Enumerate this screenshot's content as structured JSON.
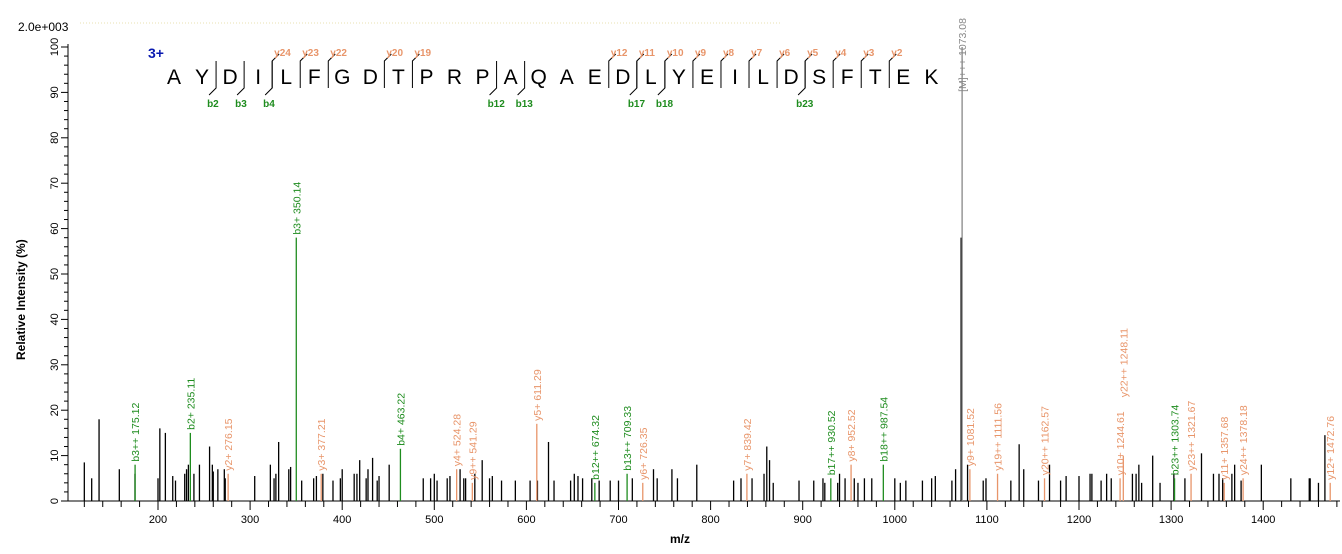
{
  "chart_data": {
    "type": "bar",
    "title": "",
    "scale_label": "2.0e+003",
    "xlabel": "m/z",
    "ylabel": "Relative  Intensity (%)",
    "xlim": [
      102,
      1485
    ],
    "ylim": [
      0,
      100
    ],
    "x_ticks": [
      200,
      300,
      400,
      500,
      600,
      700,
      800,
      900,
      1000,
      1100,
      1200,
      1300,
      1400
    ],
    "y_ticks": [
      0,
      10,
      20,
      30,
      40,
      50,
      60,
      70,
      80,
      90,
      100
    ],
    "charge_label": "3+",
    "sequence": [
      "A",
      "Y",
      "D",
      "I",
      "L",
      "F",
      "G",
      "D",
      "T",
      "P",
      "R",
      "P",
      "A",
      "Q",
      "A",
      "E",
      "D",
      "L",
      "Y",
      "E",
      "I",
      "L",
      "D",
      "S",
      "F",
      "T",
      "E",
      "K"
    ],
    "b_ions": [
      2,
      3,
      4,
      12,
      13,
      17,
      18,
      23
    ],
    "y_ions": [
      24,
      23,
      22,
      20,
      19,
      12,
      11,
      10,
      9,
      8,
      7,
      6,
      5,
      4,
      3,
      2
    ],
    "colors": {
      "b": "#1e8c1e",
      "y": "#e8956a",
      "unassigned": "#000000",
      "precursor": "#888888"
    },
    "labeled_peaks": [
      {
        "mz": 175.12,
        "intensity": 8,
        "type": "b",
        "label": "b3++ 175.12"
      },
      {
        "mz": 235.11,
        "intensity": 15,
        "type": "b",
        "label": "b2+ 235.11"
      },
      {
        "mz": 276.15,
        "intensity": 6,
        "type": "y",
        "label": "y2+ 276.15"
      },
      {
        "mz": 350.14,
        "intensity": 58,
        "type": "b",
        "label": "b3+ 350.14"
      },
      {
        "mz": 377.21,
        "intensity": 6,
        "type": "y",
        "label": "y3+ 377.21"
      },
      {
        "mz": 463.22,
        "intensity": 11.5,
        "type": "b",
        "label": "b4+ 463.22"
      },
      {
        "mz": 524.28,
        "intensity": 7,
        "type": "y",
        "label": "y4+ 524.28"
      },
      {
        "mz": 541.29,
        "intensity": 4,
        "type": "y",
        "label": "y9++ 541.29"
      },
      {
        "mz": 611.29,
        "intensity": 17,
        "type": "y",
        "label": "y5+ 611.29"
      },
      {
        "mz": 674.32,
        "intensity": 4,
        "type": "b",
        "label": "b12++ 674.32"
      },
      {
        "mz": 709.33,
        "intensity": 6,
        "type": "b",
        "label": "b13++ 709.33"
      },
      {
        "mz": 726.35,
        "intensity": 4,
        "type": "y",
        "label": "y6+ 726.35"
      },
      {
        "mz": 839.42,
        "intensity": 6,
        "type": "y",
        "label": "y7+ 839.42"
      },
      {
        "mz": 930.52,
        "intensity": 5,
        "type": "b",
        "label": "b17++ 930.52"
      },
      {
        "mz": 952.52,
        "intensity": 8,
        "type": "y",
        "label": "y8+ 952.52"
      },
      {
        "mz": 987.54,
        "intensity": 8,
        "type": "b",
        "label": "b18++ 987.54"
      },
      {
        "mz": 1073.08,
        "intensity": 100,
        "type": "precursor",
        "label": "[M]+++ 1073.08"
      },
      {
        "mz": 1081.52,
        "intensity": 7,
        "type": "y",
        "label": "y9+ 1081.52"
      },
      {
        "mz": 1111.56,
        "intensity": 6,
        "type": "y",
        "label": "y19++ 1111.56"
      },
      {
        "mz": 1162.57,
        "intensity": 5,
        "type": "y",
        "label": "y20++ 1162.57"
      },
      {
        "mz": 1244.61,
        "intensity": 5,
        "type": "y",
        "label": "y10+ 1244.61"
      },
      {
        "mz": 1248.11,
        "intensity": 10,
        "type": "y",
        "label": "y22++ 1248.11"
      },
      {
        "mz": 1303.74,
        "intensity": 5,
        "type": "b",
        "label": "b23++ 1303.74"
      },
      {
        "mz": 1321.67,
        "intensity": 6,
        "type": "y",
        "label": "y23++ 1321.67"
      },
      {
        "mz": 1357.68,
        "intensity": 4,
        "type": "y",
        "label": "y11+ 1357.68"
      },
      {
        "mz": 1378.18,
        "intensity": 5,
        "type": "y",
        "label": "y24++ 1378.18"
      },
      {
        "mz": 1472.76,
        "intensity": 4,
        "type": "y",
        "label": "y12+ 1472.76"
      }
    ],
    "unlabeled_peaks": [
      [
        120,
        8.5
      ],
      [
        128,
        5
      ],
      [
        136,
        18
      ],
      [
        158,
        7
      ],
      [
        175,
        6
      ],
      [
        200,
        5
      ],
      [
        202,
        16
      ],
      [
        208,
        15
      ],
      [
        216,
        5.5
      ],
      [
        219,
        4.5
      ],
      [
        229,
        6
      ],
      [
        231,
        7
      ],
      [
        233,
        8
      ],
      [
        239,
        6
      ],
      [
        245,
        8
      ],
      [
        256,
        12
      ],
      [
        259,
        8
      ],
      [
        260,
        6.5
      ],
      [
        265,
        7
      ],
      [
        272,
        7
      ],
      [
        273,
        5
      ],
      [
        305,
        5.5
      ],
      [
        322,
        8
      ],
      [
        326,
        5
      ],
      [
        328,
        6
      ],
      [
        331,
        13
      ],
      [
        342,
        7
      ],
      [
        344,
        7.5
      ],
      [
        356,
        4.5
      ],
      [
        369,
        5
      ],
      [
        372,
        5.5
      ],
      [
        379,
        6
      ],
      [
        390,
        4.5
      ],
      [
        398,
        5
      ],
      [
        400,
        7
      ],
      [
        413,
        6
      ],
      [
        416,
        6
      ],
      [
        419,
        9
      ],
      [
        426,
        5
      ],
      [
        428,
        7
      ],
      [
        433,
        9.5
      ],
      [
        438,
        4.5
      ],
      [
        440,
        5.5
      ],
      [
        451,
        8
      ],
      [
        488,
        5
      ],
      [
        496,
        5
      ],
      [
        500,
        6
      ],
      [
        503,
        4.5
      ],
      [
        514,
        5
      ],
      [
        517,
        5.5
      ],
      [
        528,
        7
      ],
      [
        532,
        5
      ],
      [
        534,
        5
      ],
      [
        544,
        6
      ],
      [
        552,
        9
      ],
      [
        560,
        5
      ],
      [
        563,
        5.5
      ],
      [
        573,
        4.5
      ],
      [
        588,
        4.5
      ],
      [
        604,
        4.5
      ],
      [
        612,
        4.5
      ],
      [
        624,
        13
      ],
      [
        630,
        4.5
      ],
      [
        648,
        4.5
      ],
      [
        652,
        6
      ],
      [
        656,
        5.5
      ],
      [
        661,
        5
      ],
      [
        671,
        5
      ],
      [
        679,
        4.5
      ],
      [
        691,
        4.5
      ],
      [
        700,
        4.5
      ],
      [
        715,
        5
      ],
      [
        738,
        7
      ],
      [
        742,
        5
      ],
      [
        758,
        7
      ],
      [
        764,
        5
      ],
      [
        785,
        8
      ],
      [
        825,
        4.5
      ],
      [
        833,
        5
      ],
      [
        845,
        5
      ],
      [
        858,
        6
      ],
      [
        861,
        12
      ],
      [
        864,
        9
      ],
      [
        868,
        4
      ],
      [
        896,
        4.5
      ],
      [
        912,
        4.5
      ],
      [
        922,
        5
      ],
      [
        924,
        4
      ],
      [
        938,
        4
      ],
      [
        940,
        6
      ],
      [
        946,
        5
      ],
      [
        956,
        5
      ],
      [
        960,
        4
      ],
      [
        967,
        5
      ],
      [
        975,
        5
      ],
      [
        1000,
        5
      ],
      [
        1006,
        4
      ],
      [
        1012,
        4.5
      ],
      [
        1030,
        4.5
      ],
      [
        1040,
        5
      ],
      [
        1044,
        5.5
      ],
      [
        1062,
        4.5
      ],
      [
        1066,
        7
      ],
      [
        1072,
        58
      ],
      [
        1079,
        8
      ],
      [
        1096,
        4.5
      ],
      [
        1099,
        5
      ],
      [
        1126,
        4.5
      ],
      [
        1135,
        12.5
      ],
      [
        1140,
        7
      ],
      [
        1156,
        4.5
      ],
      [
        1168,
        8
      ],
      [
        1180,
        4.5
      ],
      [
        1186,
        5.5
      ],
      [
        1200,
        5.5
      ],
      [
        1212,
        6
      ],
      [
        1214,
        6
      ],
      [
        1224,
        4.5
      ],
      [
        1230,
        6
      ],
      [
        1235,
        5
      ],
      [
        1258,
        6
      ],
      [
        1262,
        6
      ],
      [
        1265,
        8
      ],
      [
        1268,
        4
      ],
      [
        1280,
        10
      ],
      [
        1288,
        4
      ],
      [
        1303,
        6
      ],
      [
        1315,
        5
      ],
      [
        1333,
        10.5
      ],
      [
        1346,
        6
      ],
      [
        1352,
        6
      ],
      [
        1356,
        5
      ],
      [
        1366,
        6
      ],
      [
        1369,
        8
      ],
      [
        1376,
        4.5
      ],
      [
        1398,
        8
      ],
      [
        1430,
        5
      ],
      [
        1450,
        5
      ],
      [
        1451,
        5
      ],
      [
        1460,
        4
      ],
      [
        1467,
        14.5
      ]
    ]
  }
}
